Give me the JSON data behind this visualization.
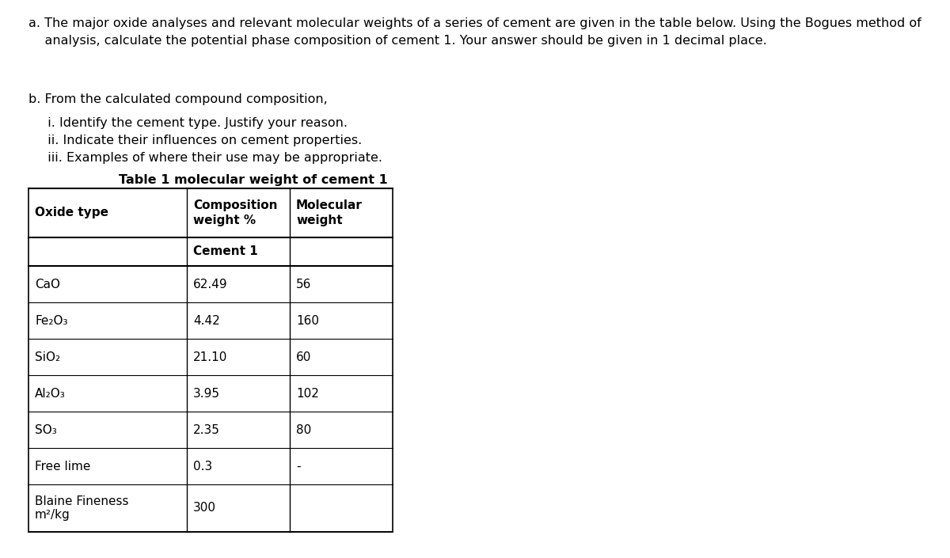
{
  "title_a1": "a. The major oxide analyses and relevant molecular weights of a series of cement are given in the table below. Using the Bogues method of",
  "title_a2": "    analysis, calculate the potential phase composition of cement 1. Your answer should be given in 1 decimal place.",
  "title_b": "b. From the calculated compound composition,",
  "title_bi": "  i. Identify the cement type. Justify your reason.",
  "title_bii": "  ii. Indicate their influences on cement properties.",
  "title_biii": "  iii. Examples of where their use may be appropriate.",
  "table_title": "Table 1 molecular weight of cement 1",
  "col0_header": "Oxide type",
  "col1_header": "Composition\nweight %",
  "col2_header": "Molecular\nweight",
  "sub_header": "Cement 1",
  "rows": [
    [
      "CaO",
      "62.49",
      "56"
    ],
    [
      "Fe₂O₃",
      "4.42",
      "160"
    ],
    [
      "SiO₂",
      "21.10",
      "60"
    ],
    [
      "Al₂O₃",
      "3.95",
      "102"
    ],
    [
      "SO₃",
      "2.35",
      "80"
    ],
    [
      "Free lime",
      "0.3",
      "-"
    ],
    [
      "Blaine Fineness\nm²/kg",
      "300",
      ""
    ]
  ],
  "bg_color": "#ffffff",
  "text_color": "#000000",
  "font_size": 11.5,
  "table_font_size": 11.0
}
